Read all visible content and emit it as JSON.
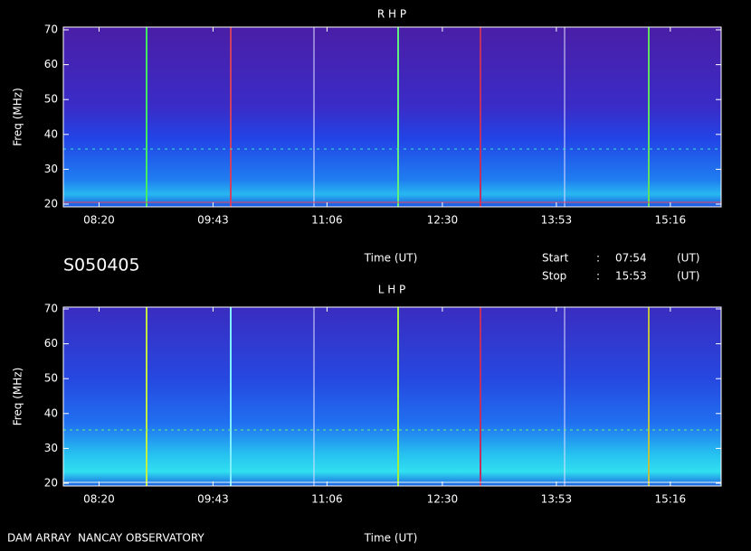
{
  "chart_data": [
    {
      "type": "spectrogram",
      "title": "R H P",
      "xlabel": "Time (UT)",
      "ylabel": "Freq (MHz)",
      "xlim": [
        474,
        953
      ],
      "xticks": [
        {
          "value": 500,
          "label": "08:20"
        },
        {
          "value": 583,
          "label": "09:43"
        },
        {
          "value": 666,
          "label": "11:06"
        },
        {
          "value": 750,
          "label": "12:30"
        },
        {
          "value": 833,
          "label": "13:53"
        },
        {
          "value": 916,
          "label": "15:16"
        }
      ],
      "ylim": [
        20,
        70
      ],
      "yticks": [
        20,
        30,
        40,
        50,
        60,
        70
      ]
    },
    {
      "type": "spectrogram",
      "title": "L H P",
      "xlabel": "Time (UT)",
      "ylabel": "Freq (MHz)",
      "xlim": [
        474,
        953
      ],
      "xticks": [
        {
          "value": 500,
          "label": "08:20"
        },
        {
          "value": 583,
          "label": "09:43"
        },
        {
          "value": 666,
          "label": "11:06"
        },
        {
          "value": 750,
          "label": "12:30"
        },
        {
          "value": 833,
          "label": "13:53"
        },
        {
          "value": 916,
          "label": "15:16"
        }
      ],
      "ylim": [
        20,
        70
      ],
      "yticks": [
        20,
        30,
        40,
        50,
        60,
        70
      ]
    }
  ],
  "info": {
    "id": "S050405",
    "start_label": "Start",
    "stop_label": "Stop",
    "colon": ":",
    "start": "07:54",
    "stop": "15:53",
    "unit": "(UT)",
    "footer": "DAM ARRAY  NANCAY OBSERVATORY"
  }
}
